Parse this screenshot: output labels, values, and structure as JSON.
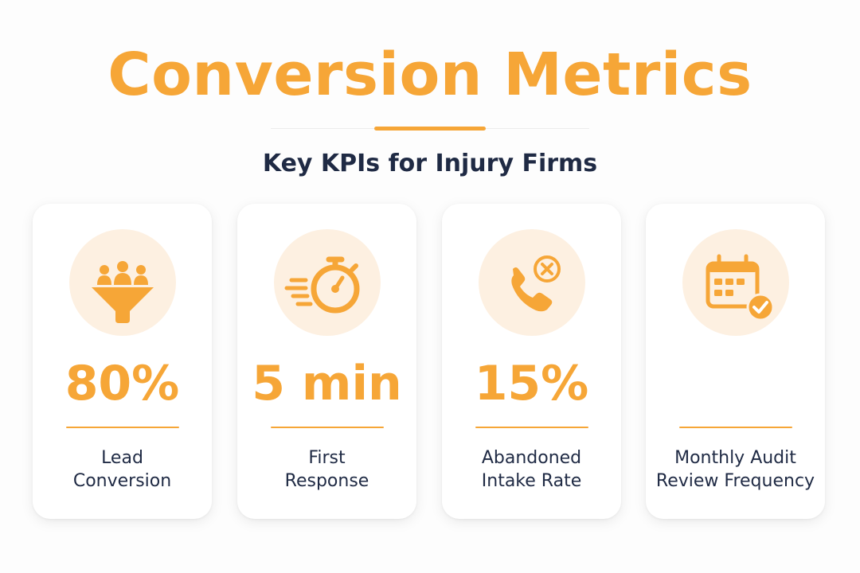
{
  "header": {
    "title": "Conversion Metrics",
    "subtitle": "Key KPIs for Injury Firms"
  },
  "colors": {
    "accent": "#f6a637",
    "icon_bg": "#fdf0e1",
    "text_dark": "#1f2a44"
  },
  "cards": [
    {
      "icon": "funnel-people-icon",
      "value": "80%",
      "label": "Lead\nConversion"
    },
    {
      "icon": "stopwatch-icon",
      "value": "5 min",
      "label": "First\nResponse"
    },
    {
      "icon": "phone-cancel-icon",
      "value": "15%",
      "label": "Abandoned\nIntake Rate"
    },
    {
      "icon": "calendar-check-icon",
      "value": "",
      "label": "Monthly Audit\nReview Frequency"
    }
  ]
}
